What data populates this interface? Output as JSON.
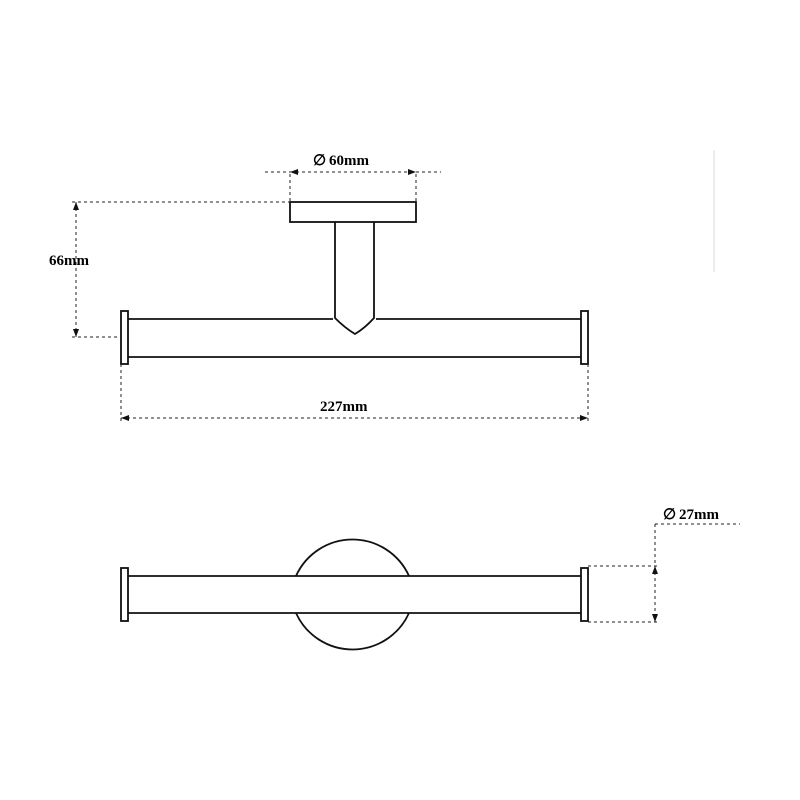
{
  "dimensions": {
    "base_diameter": "60mm",
    "projection": "66mm",
    "total_length": "227mm",
    "bar_diameter": "27mm"
  },
  "symbols": {
    "diameter": "∅"
  },
  "colors": {
    "line": "#111111",
    "background": "#ffffff"
  }
}
